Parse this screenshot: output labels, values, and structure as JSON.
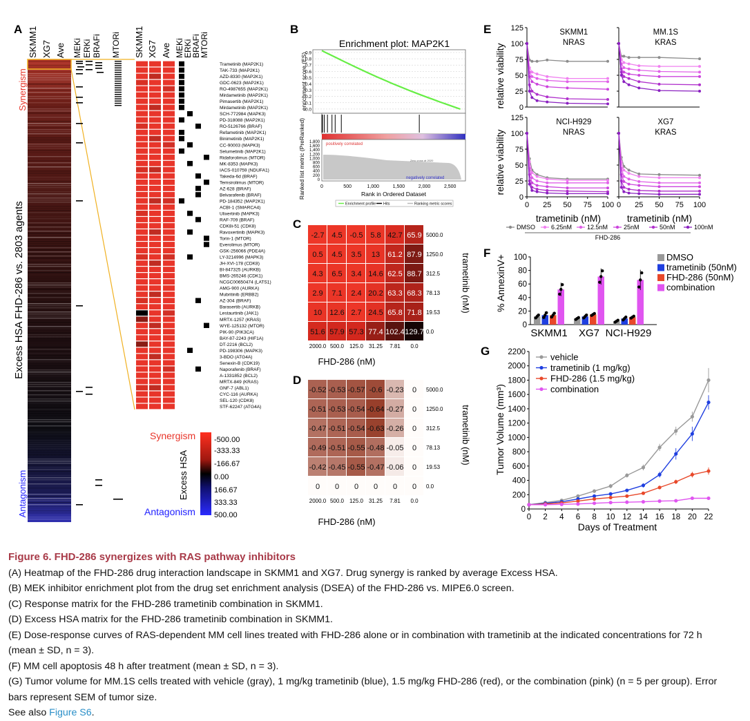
{
  "panelA": {
    "letter": "A",
    "col_headers_left": [
      "SKMM1",
      "XG7",
      "Ave"
    ],
    "mech_headers": [
      "MEKi",
      "ERKi",
      "BRAFi",
      "MTORi"
    ],
    "col_headers_zoom": [
      "SKMM1",
      "XG7",
      "Ave"
    ],
    "mech_headers_zoom": [
      "MEKi",
      "ERKi",
      "BRAFi",
      "MTORi"
    ],
    "y_title": "Excess HSA FHD-286 vs. 2803 agents",
    "synergism": "Synergism",
    "antagonism": "Antagonism",
    "drugs": [
      "Trametinib (MAP2K1)",
      "TAK-733 (MAP2K1)",
      "AZD-8330 (MAP2K1)",
      "GDC-0623 (MAP2K1)",
      "RO-4987655 (MAP2K1)",
      "Mirdametinib (MAP2K1)",
      "Pimasertib (MAP2K1)",
      "Mirdametinib (MAP2K1)",
      "SCH-772984 (MAPK3)",
      "PD-318088 (MAP2K1)",
      "RO-5126766 (BRAF)",
      "Refametinib (MAP2K1)",
      "Binimetinib (MAP2K1)",
      "CC-90003 (MAPK3)",
      "Selumetinib (MAP2K1)",
      "Ridaforolimus (MTOR)",
      "MK-8353 (MAPK3)",
      "IACS-010759 (NDUFA1)",
      "Takeda-6d (BRAF)",
      "Temsirolimus (MTOR)",
      "AZ-628 (BRAF)",
      "Belvarafenib (BRAF)",
      "PD-184352 (MAP2K1)",
      "ACBI-1 (SMARCA4)",
      "Ulixertinib (MAPK3)",
      "RAF-709 (BRAF)",
      "CDK8i-51 (CDK8)",
      "Ravoxertinib (MAPK3)",
      "Torin-1 (MTOR)",
      "Everolimus (MTOR)",
      "GSK-256066 (PDE4A)",
      "LY-3214996 (MAPK3)",
      "JH-XVI-178 (CDK8)",
      "BI-847325 (AURKB)",
      "BMS-265246 (CDK1)",
      "NCGC00650474 (LATS1)",
      "AMG-900 (AURKA)",
      "Mubritinib (ERBB2)",
      "AZ-304 (BRAF)",
      "Barasertib (AURKB)",
      "Lestaurtinib (JAK1)",
      "MRTX-1257 (KRAS)",
      "WYE-125132 (MTOR)",
      "PIK-90 (PIK3CA)",
      "BAY-87-2243 (HIF1A)",
      "DT-2216 (BCL2)",
      "PD-198306 (MAPK3)",
      "3-BDO (ATG4A)",
      "Senexin-B (CDK19)",
      "Naporafenib (BRAF)",
      "A-1331852 (BCL2)",
      "MRTX-849 (KRAS)",
      "GNF-7 (ABL1)",
      "CYC-116 (AURKA)",
      "SEL-120 (CDK8)",
      "STF-62247 (ATG4A)"
    ],
    "mech_marks": [
      [
        0
      ],
      [
        0
      ],
      [
        0
      ],
      [
        0
      ],
      [
        0
      ],
      [
        0
      ],
      [
        0
      ],
      [
        0
      ],
      [
        1
      ],
      [
        0
      ],
      [
        2
      ],
      [
        0
      ],
      [
        0
      ],
      [
        1
      ],
      [
        0
      ],
      [
        3
      ],
      [
        1
      ],
      [],
      [
        2
      ],
      [
        3
      ],
      [
        2
      ],
      [
        2
      ],
      [
        0
      ],
      [],
      [
        1
      ],
      [
        2
      ],
      [],
      [
        1
      ],
      [
        3
      ],
      [
        3
      ],
      [],
      [
        1
      ],
      [],
      [],
      [],
      [],
      [],
      [],
      [
        2
      ],
      [],
      [],
      [],
      [
        3
      ],
      [],
      [],
      [],
      [
        1
      ],
      [],
      [],
      [
        2
      ],
      [],
      [],
      [],
      [],
      [],
      []
    ],
    "legend_title": "Excess HSA",
    "legend_ticks": [
      "-500.00",
      "-333.33",
      "-166.67",
      "0.00",
      "166.67",
      "333.33",
      "500.00"
    ],
    "legend_syn": "Synergism",
    "legend_ant": "Antagonism",
    "colors": {
      "syn": "#e8352a",
      "ant": "#2020ff",
      "zoom_line": "#f0b020"
    }
  },
  "panelB": {
    "letter": "B",
    "title": "Enrichment plot: MAP2K1",
    "es_label": "enrichment score (ES)",
    "es_ticks": [
      "0.9",
      "0.8",
      "0.7",
      "0.6",
      "0.5",
      "0.4",
      "0.3",
      "0.2",
      "0.1",
      "0.0"
    ],
    "metric_label": "Ranked list metric (PreRanked)",
    "metric_ticks": [
      "1,800",
      "1,600",
      "1,400",
      "1,200",
      "1,000",
      "800",
      "600",
      "400",
      "200",
      "0"
    ],
    "x_ticks": [
      "0",
      "500",
      "1,000",
      "1,500",
      "2,000",
      "2,500"
    ],
    "x_label": "Rank in Ordered Dataset",
    "pos_text": "positively correlated",
    "neg_text": "negatively correlated",
    "zero_text": "Zero cross at 2020",
    "legend": [
      "Enrichment profile",
      "Hits",
      "Ranking metric scores"
    ],
    "hit_ranks": [
      3,
      12,
      47,
      110,
      198,
      260,
      380,
      1900
    ]
  },
  "panelC": {
    "letter": "C",
    "x_label": "FHD-286 (nM)",
    "y_label": "trametinib (nM)",
    "x_ticks": [
      "2000.0",
      "500.0",
      "125.0",
      "31.25",
      "7.81",
      "0.0"
    ],
    "y_ticks": [
      "5000.0",
      "1250.0",
      "312.5",
      "78.13",
      "19.53",
      "0.0"
    ],
    "values": [
      [
        "-2.7",
        "4.5",
        "-0.5",
        "5.8",
        "42.7",
        "65.9"
      ],
      [
        "0.5",
        "4.5",
        "3.5",
        "13",
        "61.2",
        "87.9"
      ],
      [
        "4.3",
        "6.5",
        "3.4",
        "14.6",
        "62.5",
        "88.7"
      ],
      [
        "2.9",
        "7.1",
        "2.4",
        "20.2",
        "63.3",
        "68.3"
      ],
      [
        "10",
        "12.6",
        "2.7",
        "24.5",
        "65.8",
        "71.8"
      ],
      [
        "51.6",
        "57.9",
        "57.3",
        "77.4",
        "102.4",
        "129.7"
      ]
    ]
  },
  "panelD": {
    "letter": "D",
    "x_label": "FHD-286 (nM)",
    "y_label": "trametinib (nM)",
    "x_ticks": [
      "2000.0",
      "500.0",
      "125.0",
      "31.25",
      "7.81",
      "0.0"
    ],
    "y_ticks": [
      "5000.0",
      "1250.0",
      "312.5",
      "78.13",
      "19.53",
      "0.0"
    ],
    "values": [
      [
        "-0.52",
        "-0.53",
        "-0.57",
        "-0.6",
        "-0.23",
        "0"
      ],
      [
        "-0.51",
        "-0.53",
        "-0.54",
        "-0.64",
        "-0.27",
        "0"
      ],
      [
        "-0.47",
        "-0.51",
        "-0.54",
        "-0.63",
        "-0.26",
        "0"
      ],
      [
        "-0.49",
        "-0.51",
        "-0.55",
        "-0.48",
        "-0.05",
        "0"
      ],
      [
        "-0.42",
        "-0.45",
        "-0.55",
        "-0.47",
        "-0.06",
        "0"
      ],
      [
        "0",
        "0",
        "0",
        "0",
        "0",
        "0"
      ]
    ]
  },
  "panelE": {
    "letter": "E",
    "y_label": "relative viability",
    "x_label": "trametinib (nM)",
    "y_ticks": [
      "0",
      "25",
      "50",
      "75",
      "100",
      "125"
    ],
    "x_ticks": [
      "0",
      "25",
      "50",
      "75",
      "100"
    ],
    "subplots": [
      {
        "line1": "SKMM1",
        "line2": "NRAS"
      },
      {
        "line1": "MM.1S",
        "line2": "KRAS"
      },
      {
        "line1": "NCI-H929",
        "line2": "NRAS"
      },
      {
        "line1": "XG7",
        "line2": "KRAS"
      }
    ],
    "legend": [
      "DMSO",
      "6.25nM",
      "12.5nM",
      "25nM",
      "50nM",
      "100nM"
    ],
    "legend_group": "FHD-286",
    "x": [
      0,
      3.13,
      6.25,
      12.5,
      25,
      50,
      100
    ],
    "chart_data": {
      "type": "line",
      "x": [
        0,
        3.13,
        6.25,
        12.5,
        25,
        50,
        100
      ],
      "series_colors": [
        "#8c8c8c",
        "#f080f0",
        "#e060e8",
        "#cc44dd",
        "#b030cc",
        "#8a20c0"
      ],
      "subplots": [
        {
          "series": [
            [
              100,
              74,
              72,
              72,
              74,
              72,
              72
            ],
            [
              100,
              62,
              55,
              52,
              48,
              45,
              45
            ],
            [
              100,
              55,
              48,
              45,
              42,
              40,
              40
            ],
            [
              100,
              48,
              40,
              36,
              32,
              30,
              28
            ],
            [
              100,
              35,
              25,
              20,
              16,
              13,
              12
            ],
            [
              100,
              25,
              15,
              10,
              8,
              6,
              5
            ]
          ]
        },
        {
          "series": [
            [
              100,
              80,
              80,
              78,
              78,
              78,
              76
            ],
            [
              100,
              75,
              70,
              68,
              65,
              64,
              64
            ],
            [
              100,
              68,
              62,
              60,
              58,
              56,
              55
            ],
            [
              100,
              60,
              55,
              52,
              50,
              48,
              48
            ],
            [
              100,
              55,
              48,
              45,
              40,
              36,
              35
            ],
            [
              100,
              50,
              40,
              35,
              30,
              26,
              25
            ]
          ]
        },
        {
          "series": [
            [
              100,
              60,
              42,
              35,
              30,
              28,
              28
            ],
            [
              100,
              55,
              38,
              32,
              28,
              26,
              26
            ],
            [
              100,
              45,
              30,
              25,
              22,
              22,
              22
            ],
            [
              100,
              35,
              22,
              18,
              16,
              14,
              14
            ],
            [
              100,
              25,
              15,
              12,
              10,
              9,
              8
            ],
            [
              100,
              20,
              10,
              8,
              6,
              5,
              5
            ]
          ]
        },
        {
          "series": [
            [
              100,
              62,
              48,
              42,
              36,
              35,
              34
            ],
            [
              100,
              55,
              42,
              37,
              32,
              30,
              30
            ],
            [
              100,
              45,
              32,
              28,
              24,
              22,
              22
            ],
            [
              100,
              35,
              24,
              20,
              18,
              16,
              16
            ],
            [
              100,
              25,
              15,
              12,
              10,
              9,
              9
            ],
            [
              100,
              15,
              8,
              6,
              5,
              4,
              4
            ]
          ]
        }
      ]
    }
  },
  "panelF": {
    "letter": "F",
    "y_label": "% AnnexinV+",
    "y_ticks": [
      "0",
      "20",
      "40",
      "60",
      "80",
      "100"
    ],
    "categories": [
      "SKMM1",
      "XG7",
      "NCI-H929"
    ],
    "legend": [
      "DMSO",
      "trametinib (50nM)",
      "FHD-286 (50nM)",
      "combination"
    ],
    "colors": [
      "#999999",
      "#1f3fe0",
      "#e8482a",
      "#e055f0"
    ],
    "chart_data": {
      "type": "bar",
      "categories": [
        "SKMM1",
        "XG7",
        "NCI-H929"
      ],
      "series": [
        {
          "name": "DMSO",
          "values": [
            12,
            9,
            5
          ],
          "sd": [
            3,
            2,
            2
          ]
        },
        {
          "name": "trametinib (50nM)",
          "values": [
            14,
            12,
            9
          ],
          "sd": [
            5,
            3,
            3
          ]
        },
        {
          "name": "FHD-286 (50nM)",
          "values": [
            14,
            15,
            11
          ],
          "sd": [
            4,
            2,
            2
          ]
        },
        {
          "name": "combination",
          "values": [
            52,
            71,
            66
          ],
          "sd": [
            10,
            12,
            15
          ]
        }
      ],
      "ylim": [
        0,
        100
      ]
    }
  },
  "panelG": {
    "letter": "G",
    "y_label": "Tumor Volume (mm³)",
    "x_label": "Days of Treatment",
    "y_ticks": [
      "0",
      "200",
      "400",
      "600",
      "800",
      "1000",
      "1200",
      "1400",
      "1600",
      "1800",
      "2000",
      "2200"
    ],
    "x_ticks": [
      "0",
      "2",
      "4",
      "6",
      "8",
      "10",
      "12",
      "14",
      "16",
      "18",
      "20",
      "22"
    ],
    "legend": [
      "vehicle",
      "trametinib (1 mg/kg)",
      "FHD-286 (1.5 mg/kg)",
      "combination"
    ],
    "colors": [
      "#999999",
      "#1f3fe0",
      "#e8482a",
      "#e055f0"
    ],
    "chart_data": {
      "type": "line",
      "x": [
        0,
        2,
        4,
        6,
        8,
        10,
        12,
        14,
        16,
        18,
        20,
        22
      ],
      "series": [
        {
          "name": "vehicle",
          "values": [
            60,
            90,
            120,
            180,
            250,
            320,
            470,
            580,
            860,
            1090,
            1290,
            1800
          ],
          "sem": [
            10,
            10,
            15,
            20,
            25,
            30,
            30,
            40,
            50,
            60,
            70,
            170
          ]
        },
        {
          "name": "trametinib (1 mg/kg)",
          "values": [
            60,
            80,
            100,
            140,
            180,
            210,
            260,
            330,
            480,
            770,
            1050,
            1490
          ],
          "sem": [
            10,
            10,
            10,
            15,
            15,
            20,
            20,
            30,
            40,
            80,
            100,
            100
          ]
        },
        {
          "name": "FHD-286 (1.5 mg/kg)",
          "values": [
            60,
            70,
            85,
            110,
            140,
            160,
            180,
            220,
            300,
            380,
            480,
            530
          ],
          "sem": [
            8,
            8,
            10,
            10,
            12,
            15,
            15,
            20,
            25,
            30,
            40,
            50
          ]
        },
        {
          "name": "combination",
          "values": [
            60,
            60,
            65,
            70,
            80,
            90,
            95,
            100,
            110,
            115,
            150,
            150
          ],
          "sem": [
            8,
            8,
            8,
            8,
            10,
            10,
            10,
            10,
            12,
            12,
            20,
            15
          ]
        }
      ],
      "xlim": [
        0,
        22
      ],
      "ylim": [
        0,
        2200
      ]
    }
  },
  "caption": {
    "title": "Figure 6.  FHD-286 synergizes with RAS pathway inhibitors",
    "a": "(A) Heatmap of the FHD-286 drug interaction landscape in SKMM1 and XG7. Drug synergy is ranked by average Excess HSA.",
    "b": "(B) MEK inhibitor enrichment plot from the drug set enrichment analysis (DSEA) of the FHD-286 vs. MIPE6.0 screen.",
    "c": "(C) Response matrix for the FHD-286 trametinib combination in SKMM1.",
    "d": "(D) Excess HSA matrix for the FHD-286 trametinib combination in SKMM1.",
    "e1": "(E) Dose-response curves of RAS-dependent MM cell lines treated with FHD-286 alone or in combination with trametinib at the indicated concentrations for 72 h",
    "e2": "(mean ± SD, n = 3).",
    "f": "(F) MM cell apoptosis 48 h after treatment (mean ± SD, n = 3).",
    "g1": "(G) Tumor volume for MM.1S cells treated with vehicle (gray), 1 mg/kg trametinib (blue), 1.5 mg/kg FHD-286 (red), or the combination (pink) (n = 5 per group). Error",
    "g2": "bars represent SEM of tumor size.",
    "see_prefix": "See also ",
    "see_link": "Figure S6",
    "see_suffix": "."
  }
}
